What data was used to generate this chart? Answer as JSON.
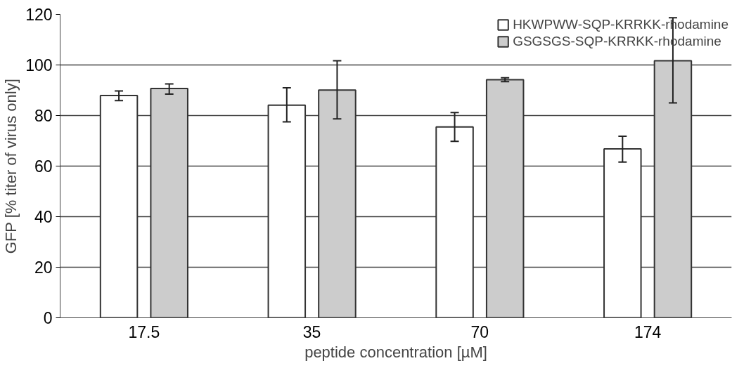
{
  "chart_data": {
    "type": "bar",
    "xlabel": "peptide concentration [µM]",
    "ylabel": "GFP [% titer of virus only]",
    "categories": [
      "17.5",
      "35",
      "70",
      "174"
    ],
    "series": [
      {
        "name": "HKWPWW-SQP-KRRKK-rhodamine",
        "color": "#ffffff",
        "values": [
          87.9,
          84.1,
          75.5,
          66.8
        ],
        "errors": [
          [
            85.9,
            89.7
          ],
          [
            77.5,
            91.0
          ],
          [
            69.8,
            81.2
          ],
          [
            61.6,
            71.8
          ]
        ]
      },
      {
        "name": "GSGSGS-SQP-KRRKK-rhodamine",
        "color": "#cccccc",
        "values": [
          90.7,
          90.1,
          94.2,
          101.7
        ],
        "errors": [
          [
            88.5,
            92.5
          ],
          [
            78.7,
            101.7
          ],
          [
            93.4,
            94.9
          ],
          [
            85.0,
            118.7
          ]
        ]
      }
    ],
    "ylim": [
      0,
      120
    ],
    "yticks": [
      0,
      20,
      40,
      60,
      80,
      100,
      120
    ],
    "grid": "y",
    "legend": "top right"
  }
}
